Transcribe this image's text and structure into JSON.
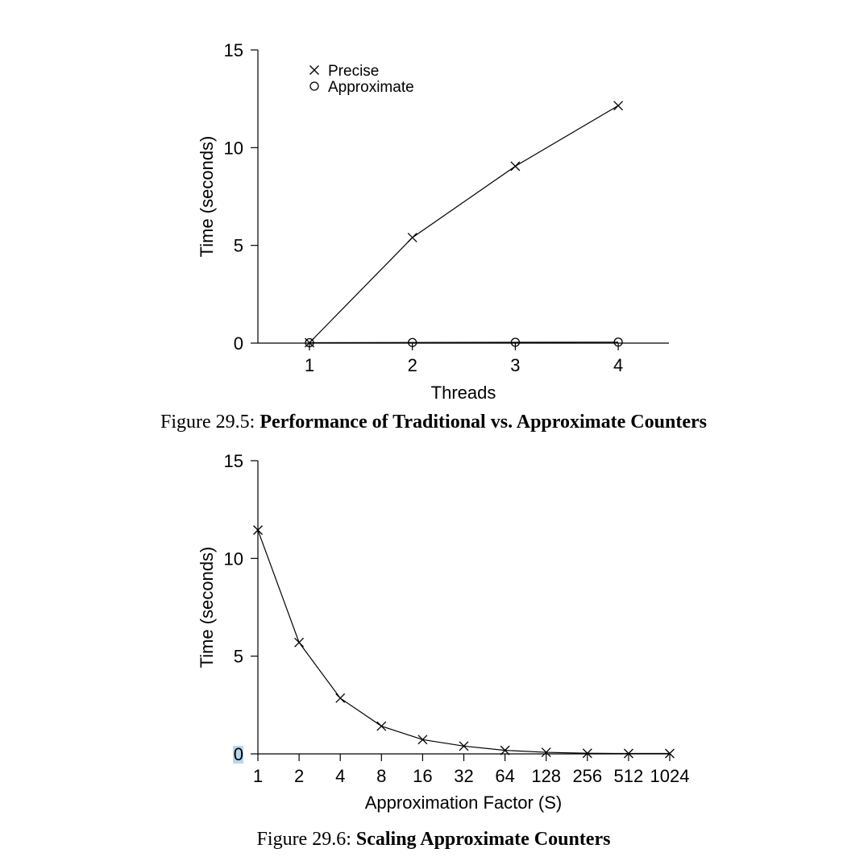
{
  "chart_data": [
    {
      "type": "line",
      "x": [
        1,
        2,
        3,
        4
      ],
      "series": [
        {
          "name": "Precise",
          "marker": "x",
          "values": [
            0.02,
            5.4,
            9.05,
            12.15
          ]
        },
        {
          "name": "Approximate",
          "marker": "o",
          "values": [
            0.02,
            0.03,
            0.04,
            0.05
          ]
        }
      ],
      "xlabel": "Threads",
      "ylabel": "Time (seconds)",
      "xticks": [
        "1",
        "2",
        "3",
        "4"
      ],
      "yticks": [
        "0",
        "5",
        "10",
        "15"
      ],
      "xlim": [
        0.5,
        4.5
      ],
      "ylim": [
        0,
        15
      ],
      "grid": false,
      "legend": "top-left",
      "caption_prefix": "Figure 29.5:",
      "caption_title": "Performance of Traditional vs. Approximate Counters"
    },
    {
      "type": "line",
      "categories": [
        "1",
        "2",
        "4",
        "8",
        "16",
        "32",
        "64",
        "128",
        "256",
        "512",
        "1024"
      ],
      "series": [
        {
          "marker": "x",
          "values": [
            11.45,
            5.7,
            2.85,
            1.42,
            0.73,
            0.4,
            0.18,
            0.08,
            0.03,
            0.02,
            0.02
          ]
        }
      ],
      "xlabel": "Approximation Factor (S)",
      "ylabel": "Time (seconds)",
      "yticks": [
        "0",
        "5",
        "10",
        "15"
      ],
      "ylim": [
        0,
        15
      ],
      "grid": false,
      "caption_prefix": "Figure 29.6:",
      "caption_title": "Scaling Approximate Counters"
    }
  ]
}
